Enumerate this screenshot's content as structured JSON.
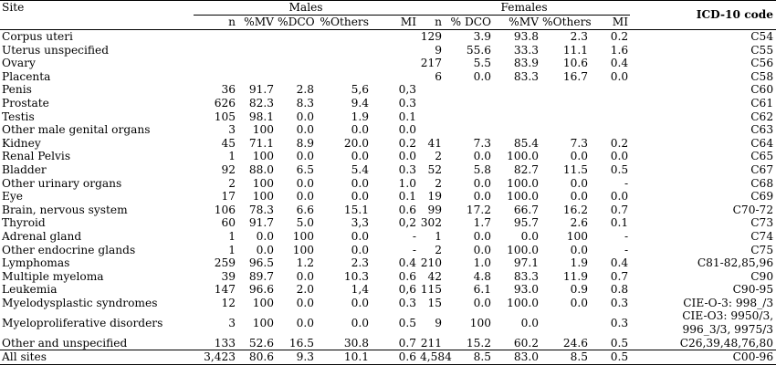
{
  "header": {
    "site": "Site",
    "males": "Males",
    "females": "Females",
    "icd": "ICD-10 code",
    "m_cols": [
      "n",
      "%MV",
      "%DCO",
      "%Others",
      "MI"
    ],
    "f_cols": [
      "n",
      "% DCO",
      "%MV",
      "%Others",
      "MI"
    ]
  },
  "rows": [
    {
      "site": "Corpus uteri",
      "m": [
        "",
        "",
        "",
        "",
        ""
      ],
      "f": [
        "129",
        "3.9",
        "93.8",
        "2.3",
        "0.2"
      ],
      "code": "C54"
    },
    {
      "site": "Uterus unspecified",
      "m": [
        "",
        "",
        "",
        "",
        ""
      ],
      "f": [
        "9",
        "55.6",
        "33.3",
        "11.1",
        "1.6"
      ],
      "code": "C55"
    },
    {
      "site": "Ovary",
      "m": [
        "",
        "",
        "",
        "",
        ""
      ],
      "f": [
        "217",
        "5.5",
        "83.9",
        "10.6",
        "0.4"
      ],
      "code": "C56"
    },
    {
      "site": "Placenta",
      "m": [
        "",
        "",
        "",
        "",
        ""
      ],
      "f": [
        "6",
        "0.0",
        "83.3",
        "16.7",
        "0.0"
      ],
      "code": "C58"
    },
    {
      "site": "Penis",
      "m": [
        "36",
        "91.7",
        "2.8",
        "5,6",
        "0,3"
      ],
      "f": [
        "",
        "",
        "",
        "",
        ""
      ],
      "code": "C60"
    },
    {
      "site": "Prostate",
      "m": [
        "626",
        "82.3",
        "8.3",
        "9.4",
        "0.3"
      ],
      "f": [
        "",
        "",
        "",
        "",
        ""
      ],
      "code": "C61"
    },
    {
      "site": "Testis",
      "m": [
        "105",
        "98.1",
        "0.0",
        "1.9",
        "0.1"
      ],
      "f": [
        "",
        "",
        "",
        "",
        ""
      ],
      "code": "C62"
    },
    {
      "site": "Other male genital organs",
      "m": [
        "3",
        "100",
        "0.0",
        "0.0",
        "0.0"
      ],
      "f": [
        "",
        "",
        "",
        "",
        ""
      ],
      "code": "C63"
    },
    {
      "site": "Kidney",
      "m": [
        "45",
        "71.1",
        "8.9",
        "20.0",
        "0.2"
      ],
      "f": [
        "41",
        "7.3",
        "85.4",
        "7.3",
        "0.2"
      ],
      "code": "C64"
    },
    {
      "site": "Renal Pelvis",
      "m": [
        "1",
        "100",
        "0.0",
        "0.0",
        "0.0"
      ],
      "f": [
        "2",
        "0.0",
        "100.0",
        "0.0",
        "0.0"
      ],
      "code": "C65"
    },
    {
      "site": "Bladder",
      "m": [
        "92",
        "88.0",
        "6.5",
        "5.4",
        "0.3"
      ],
      "f": [
        "52",
        "5.8",
        "82.7",
        "11.5",
        "0.5"
      ],
      "code": "C67"
    },
    {
      "site": "Other urinary organs",
      "m": [
        "2",
        "100",
        "0.0",
        "0.0",
        "1.0"
      ],
      "f": [
        "2",
        "0.0",
        "100.0",
        "0.0",
        "-"
      ],
      "code": "C68"
    },
    {
      "site": "Eye",
      "m": [
        "17",
        "100",
        "0.0",
        "0.0",
        "0.1"
      ],
      "f": [
        "19",
        "0.0",
        "100.0",
        "0.0",
        "0.0"
      ],
      "code": "C69"
    },
    {
      "site": "Brain, nervous system",
      "m": [
        "106",
        "78.3",
        "6.6",
        "15.1",
        "0.6"
      ],
      "f": [
        "99",
        "17.2",
        "66.7",
        "16.2",
        "0.7"
      ],
      "code": "C70-72"
    },
    {
      "site": "Thyroid",
      "m": [
        "60",
        "91.7",
        "5.0",
        "3,3",
        "0,2"
      ],
      "f": [
        "302",
        "1.7",
        "95.7",
        "2.6",
        "0.1"
      ],
      "code": "C73"
    },
    {
      "site": "Adrenal gland",
      "m": [
        "1",
        "0.0",
        "100",
        "0.0",
        "-"
      ],
      "f": [
        "1",
        "0.0",
        "0.0",
        "100",
        "-"
      ],
      "code": "C74"
    },
    {
      "site": "Other endocrine glands",
      "m": [
        "1",
        "0.0",
        "100",
        "0.0",
        "-"
      ],
      "f": [
        "2",
        "0.0",
        "100.0",
        "0.0",
        "-"
      ],
      "code": "C75"
    },
    {
      "site": "Lymphomas",
      "m": [
        "259",
        "96.5",
        "1.2",
        "2.3",
        "0.4"
      ],
      "f": [
        "210",
        "1.0",
        "97.1",
        "1.9",
        "0.4"
      ],
      "code": "C81-82,85,96"
    },
    {
      "site": "Multiple myeloma",
      "m": [
        "39",
        "89.7",
        "0.0",
        "10.3",
        "0.6"
      ],
      "f": [
        "42",
        "4.8",
        "83.3",
        "11.9",
        "0.7"
      ],
      "code": "C90"
    },
    {
      "site": "Leukemia",
      "m": [
        "147",
        "96.6",
        "2.0",
        "1,4",
        "0,6"
      ],
      "f": [
        "115",
        "6.1",
        "93.0",
        "0.9",
        "0.8"
      ],
      "code": "C90-95"
    },
    {
      "site": "Myelodysplastic syndromes",
      "m": [
        "12",
        "100",
        "0.0",
        "0.0",
        "0.3"
      ],
      "f": [
        "15",
        "0.0",
        "100.0",
        "0.0",
        "0.3"
      ],
      "code": "CIE-O-3: 998_/3"
    },
    {
      "site": "Myeloproliferative disorders",
      "m": [
        "3",
        "100",
        "0.0",
        "0.0",
        "0.5"
      ],
      "f": [
        "9",
        "100",
        "0.0",
        "",
        "0.3"
      ],
      "code": "CIE-O3: 9950/3, 996_3/3, 9975/3"
    },
    {
      "site": "Other and unspecified",
      "m": [
        "133",
        "52.6",
        "16.5",
        "30.8",
        "0.7"
      ],
      "f": [
        "211",
        "15.2",
        "60.2",
        "24.6",
        "0.5"
      ],
      "code": "C26,39,48,76,80"
    },
    {
      "site": "All sites",
      "m": [
        "3,423",
        "80.6",
        "9.3",
        "10.1",
        "0.6"
      ],
      "f": [
        "4,584",
        "8.5",
        "83.0",
        "8.5",
        "0.5"
      ],
      "code": "C00-96"
    }
  ]
}
